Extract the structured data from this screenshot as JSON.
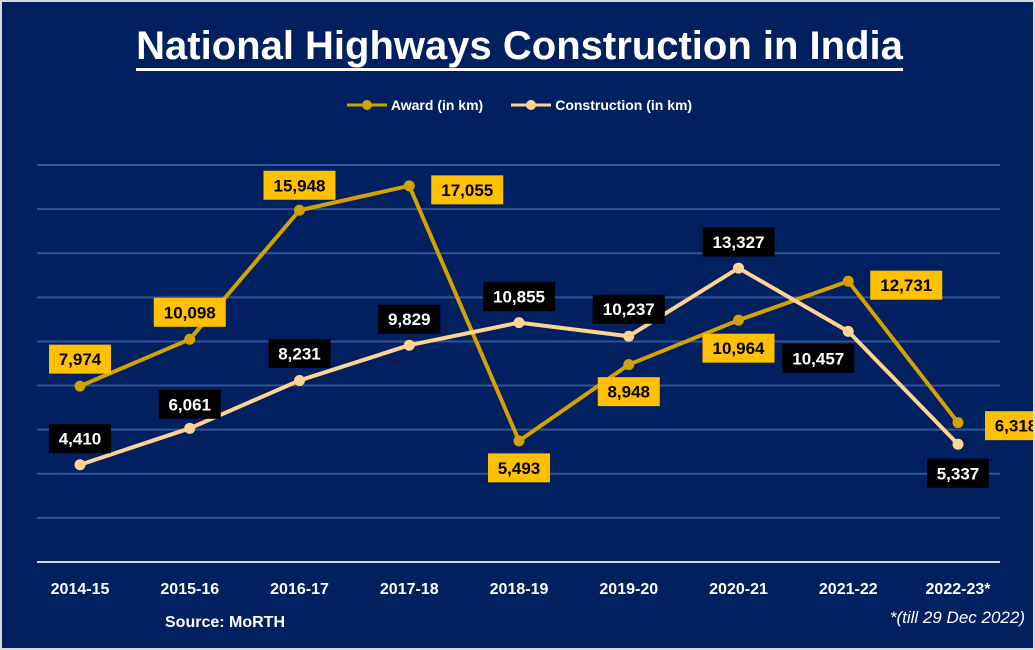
{
  "chart_data": {
    "type": "line",
    "title": "National Highways Construction in India",
    "categories": [
      "2014-15",
      "2015-16",
      "2016-17",
      "2017-18",
      "2018-19",
      "2019-20",
      "2020-21",
      "2021-22",
      "2022-23*"
    ],
    "series": [
      {
        "name": "Award (in km)",
        "color": "#D4A200",
        "label_bg": "#FFC000",
        "label_fg": "#000000",
        "values": [
          7974,
          10098,
          15948,
          17055,
          5493,
          8948,
          10964,
          12731,
          6318
        ],
        "labels": [
          "7,974",
          "10,098",
          "15,948",
          "17,055",
          "5,493",
          "8,948",
          "10,964",
          "12,731",
          "6,318"
        ]
      },
      {
        "name": "Construction (in km)",
        "color": "#FFD391",
        "label_bg": "#000000",
        "label_fg": "#FFFFFF",
        "values": [
          4410,
          6061,
          8231,
          9829,
          10855,
          10237,
          13327,
          10457,
          5337
        ],
        "labels": [
          "4,410",
          "6,061",
          "8,231",
          "9,829",
          "10,855",
          "10,237",
          "13,327",
          "10,457",
          "5,337"
        ]
      }
    ],
    "ylim": [
      0,
      18000
    ],
    "ytick_step": 2000,
    "grid": true,
    "legend_position": "top",
    "background": "#002060",
    "source": "Source: MoRTH",
    "footnote": "*(till 29 Dec 2022)"
  }
}
